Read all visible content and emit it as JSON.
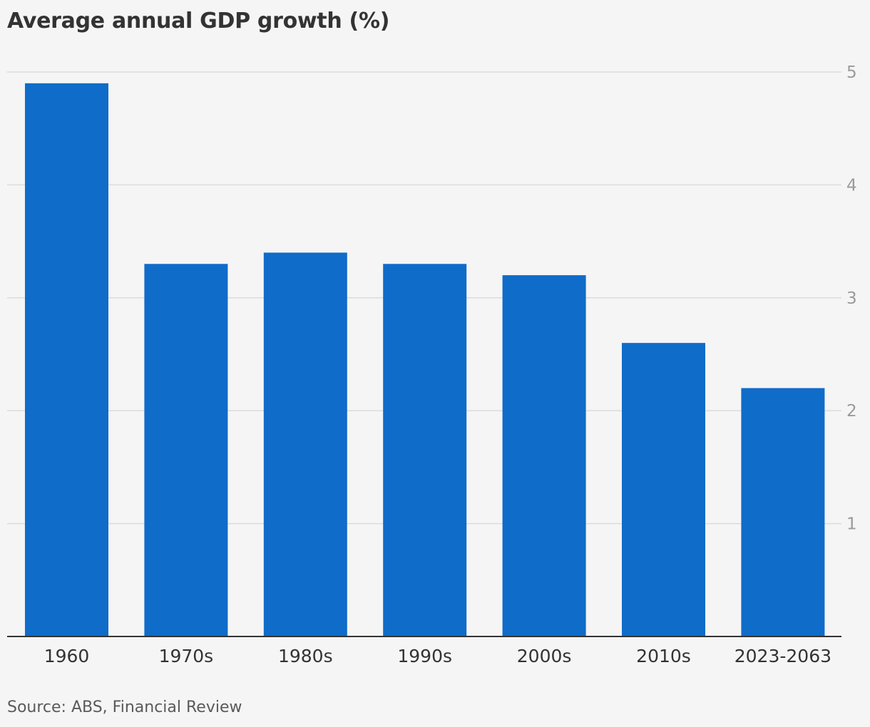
{
  "chart_data": {
    "type": "bar",
    "title": "Average annual GDP growth (%)",
    "categories": [
      "1960",
      "1970s",
      "1980s",
      "1990s",
      "2000s",
      "2010s",
      "2023-2063"
    ],
    "values": [
      4.9,
      3.3,
      3.4,
      3.3,
      3.2,
      2.6,
      2.2
    ],
    "ylim": [
      0,
      5
    ],
    "yticks": [
      "1",
      "2",
      "3",
      "4",
      "5"
    ],
    "grid": true,
    "y_axis_position": "right",
    "bar_color": "#0f6cc9",
    "source": "Source: ABS, Financial Review"
  }
}
